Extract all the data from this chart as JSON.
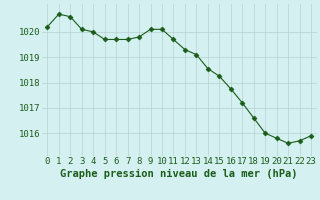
{
  "x": [
    0,
    1,
    2,
    3,
    4,
    5,
    6,
    7,
    8,
    9,
    10,
    11,
    12,
    13,
    14,
    15,
    16,
    17,
    18,
    19,
    20,
    21,
    22,
    23
  ],
  "y": [
    1020.2,
    1020.7,
    1020.6,
    1020.1,
    1020.0,
    1019.7,
    1019.7,
    1019.7,
    1019.8,
    1020.1,
    1020.1,
    1019.7,
    1019.3,
    1019.1,
    1018.55,
    1018.25,
    1017.75,
    1017.2,
    1016.6,
    1016.0,
    1015.8,
    1015.6,
    1015.7,
    1015.9
  ],
  "line_color": "#1a5c1a",
  "marker": "D",
  "marker_size": 2.5,
  "bg_color": "#d4f0f0",
  "grid_color": "#b8d0d0",
  "tick_label_color": "#1a5c1a",
  "xlabel": "Graphe pression niveau de la mer (hPa)",
  "xlabel_color": "#1a5c1a",
  "xlabel_fontsize": 7.5,
  "yticks": [
    1016,
    1017,
    1018,
    1019,
    1020
  ],
  "ylim": [
    1015.1,
    1021.1
  ],
  "xlim": [
    -0.5,
    23.5
  ],
  "xticks": [
    0,
    1,
    2,
    3,
    4,
    5,
    6,
    7,
    8,
    9,
    10,
    11,
    12,
    13,
    14,
    15,
    16,
    17,
    18,
    19,
    20,
    21,
    22,
    23
  ],
  "tick_fontsize": 6.5
}
